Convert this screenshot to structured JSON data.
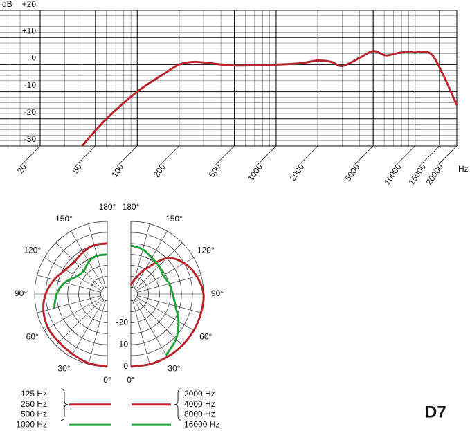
{
  "model": "D7",
  "chart_data": [
    {
      "type": "line",
      "ylabel": "dB",
      "xlabel": "Hz",
      "xscale": "log",
      "grid": true,
      "minor_ystep": 2,
      "minor_x": "log",
      "xlim": [
        20,
        20000
      ],
      "xticks": [
        20,
        50,
        100,
        200,
        500,
        1000,
        2000,
        5000,
        10000,
        15000,
        20000
      ],
      "ylim": [
        -30,
        20
      ],
      "yticks": [
        {
          "value": 20,
          "label": "+20"
        },
        {
          "value": 10,
          "label": "+10"
        },
        0,
        -10,
        -20,
        -30
      ],
      "series": [
        {
          "color": "#b5262e",
          "x": [
            40,
            60,
            100,
            160,
            200,
            250,
            300,
            500,
            1000,
            1500,
            2000,
            2500,
            3000,
            4000,
            5000,
            6000,
            6500,
            8000,
            10000,
            13000,
            16000,
            20000
          ],
          "values": [
            -30,
            -20,
            -10,
            -3,
            0,
            1,
            0.8,
            -0.3,
            0,
            0.5,
            1.5,
            1,
            -0.5,
            2.5,
            5,
            3.5,
            3.5,
            4.5,
            4.5,
            4,
            -4,
            -15
          ]
        }
      ]
    },
    {
      "type": "polar",
      "rlim": [
        -33,
        0
      ],
      "rticks": [
        -20,
        -10,
        0
      ],
      "rgrid": [
        -30,
        -25,
        -20,
        -15,
        -10,
        -5,
        0
      ],
      "alim": [
        0,
        180
      ],
      "spoke_step": 15,
      "aticks": [
        {
          "value": 180,
          "label": "180°"
        },
        {
          "value": 150,
          "label": "150°"
        },
        {
          "value": 120,
          "label": "120°"
        },
        {
          "value": 90,
          "label": "90°"
        },
        {
          "value": 60,
          "label": "60°"
        },
        {
          "value": 30,
          "label": "30°"
        },
        {
          "value": 0,
          "label": "0°"
        }
      ],
      "angles": [
        0,
        15,
        30,
        45,
        60,
        75,
        90,
        105,
        120,
        135,
        150,
        165,
        180
      ],
      "series": [
        {
          "labels": [
            "125 Hz",
            "250 Hz",
            "500 Hz"
          ],
          "side": "left",
          "color": "#b5262e",
          "values": [
            0,
            -0.5,
            -1.5,
            -2,
            -2,
            -3,
            -5,
            -8,
            -11,
            -12,
            -11,
            -10,
            -10
          ]
        },
        {
          "labels": [
            "1000 Hz"
          ],
          "side": "left",
          "color": "#22a03a",
          "values": [
            null,
            null,
            null,
            null,
            null,
            -8,
            -10,
            -13,
            -17,
            -18,
            -16,
            -15,
            -15
          ]
        },
        {
          "labels": [
            "2000 Hz",
            "4000 Hz",
            "8000 Hz"
          ],
          "side": "right",
          "color": "#b5262e",
          "values": [
            0,
            0,
            0,
            0,
            0,
            0,
            0,
            -2,
            -5,
            -10,
            -20,
            -26,
            -29
          ]
        },
        {
          "labels": [
            "16000 Hz"
          ],
          "side": "right",
          "color": "#22a03a",
          "values": [
            null,
            null,
            -1,
            -4,
            -8,
            -12,
            -14,
            -15,
            -16,
            -15,
            -14,
            -12,
            -11
          ]
        }
      ]
    }
  ]
}
